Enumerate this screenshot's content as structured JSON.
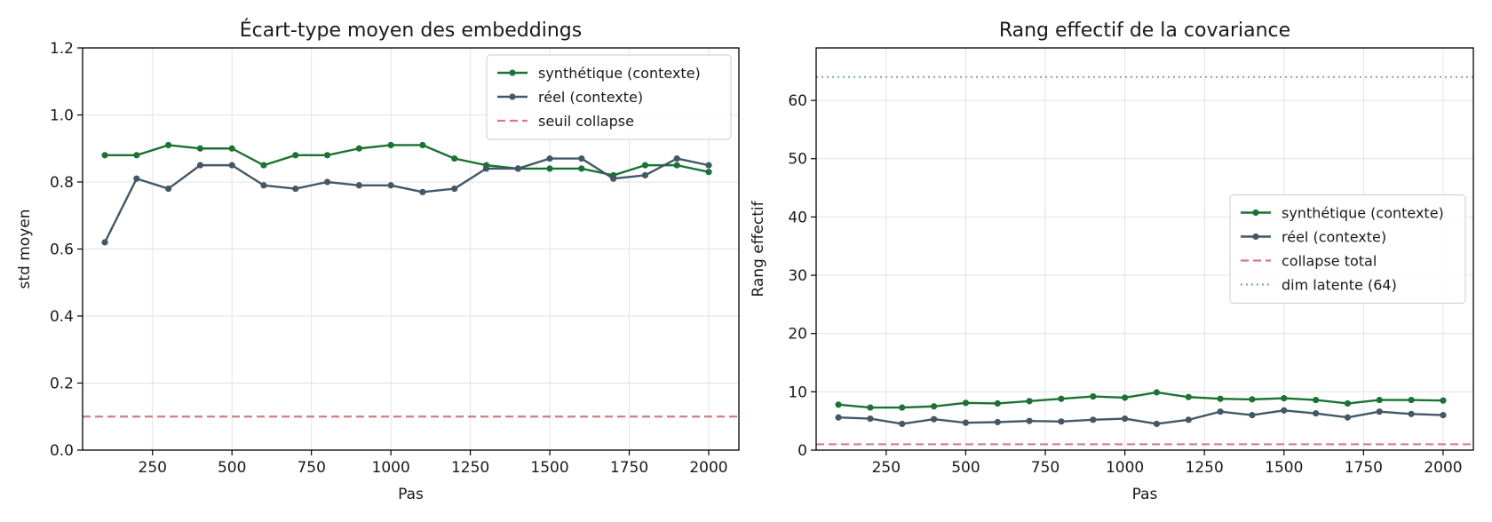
{
  "chart_data": [
    {
      "type": "line",
      "title": "Écart-type moyen des embeddings",
      "xlabel": "Pas",
      "ylabel": "std moyen",
      "xlim": [
        30,
        2095
      ],
      "ylim": [
        0.0,
        1.2
      ],
      "xticks": [
        250,
        500,
        750,
        1000,
        1250,
        1500,
        1750,
        2000
      ],
      "yticks": [
        0.0,
        0.2,
        0.4,
        0.6,
        0.8,
        1.0,
        1.2
      ],
      "ytick_labels": [
        "0.0",
        "0.2",
        "0.4",
        "0.6",
        "0.8",
        "1.0",
        "1.2"
      ],
      "grid": true,
      "legend_position": "top-right",
      "x": [
        100,
        200,
        300,
        400,
        500,
        600,
        700,
        800,
        900,
        1000,
        1100,
        1200,
        1300,
        1400,
        1500,
        1600,
        1700,
        1800,
        1900,
        2000
      ],
      "series": [
        {
          "name": "synthétique (contexte)",
          "color": "#1a7332",
          "style": "line-marker",
          "values": [
            0.88,
            0.88,
            0.91,
            0.9,
            0.9,
            0.85,
            0.88,
            0.88,
            0.9,
            0.91,
            0.91,
            0.87,
            0.85,
            0.84,
            0.84,
            0.84,
            0.82,
            0.85,
            0.85,
            0.83
          ]
        },
        {
          "name": "réel (contexte)",
          "color": "#435866",
          "style": "line-marker",
          "values": [
            0.62,
            0.81,
            0.78,
            0.85,
            0.85,
            0.79,
            0.78,
            0.8,
            0.79,
            0.79,
            0.77,
            0.78,
            0.84,
            0.84,
            0.87,
            0.87,
            0.81,
            0.82,
            0.87,
            0.85
          ]
        },
        {
          "name": "seuil collapse",
          "color": "#d67a82",
          "style": "hline-dashed",
          "y": 0.1
        }
      ]
    },
    {
      "type": "line",
      "title": "Rang effectif de la covariance",
      "xlabel": "Pas",
      "ylabel": "Rang effectif",
      "xlim": [
        30,
        2095
      ],
      "ylim": [
        0,
        69
      ],
      "xticks": [
        250,
        500,
        750,
        1000,
        1250,
        1500,
        1750,
        2000
      ],
      "yticks": [
        0,
        10,
        20,
        30,
        40,
        50,
        60
      ],
      "ytick_labels": [
        "0",
        "10",
        "20",
        "30",
        "40",
        "50",
        "60"
      ],
      "grid": true,
      "legend_position": "center-right",
      "x": [
        100,
        200,
        300,
        400,
        500,
        600,
        700,
        800,
        900,
        1000,
        1100,
        1200,
        1300,
        1400,
        1500,
        1600,
        1700,
        1800,
        1900,
        2000
      ],
      "series": [
        {
          "name": "synthétique (contexte)",
          "color": "#1a7332",
          "style": "line-marker",
          "values": [
            7.8,
            7.3,
            7.3,
            7.5,
            8.1,
            8.0,
            8.4,
            8.8,
            9.2,
            9.0,
            9.9,
            9.1,
            8.8,
            8.7,
            8.9,
            8.6,
            8.0,
            8.6,
            8.6,
            8.5
          ]
        },
        {
          "name": "réel (contexte)",
          "color": "#435866",
          "style": "line-marker",
          "values": [
            5.6,
            5.4,
            4.5,
            5.3,
            4.7,
            4.8,
            5.0,
            4.9,
            5.2,
            5.4,
            4.5,
            5.2,
            6.6,
            6.0,
            6.8,
            6.3,
            5.6,
            6.6,
            6.2,
            6.0
          ]
        },
        {
          "name": "collapse total",
          "color": "#d67a82",
          "style": "hline-dashed",
          "y": 1
        },
        {
          "name": "dim latente (64)",
          "color": "#7fb48f",
          "style": "hline-dotted",
          "y": 64
        }
      ]
    }
  ]
}
